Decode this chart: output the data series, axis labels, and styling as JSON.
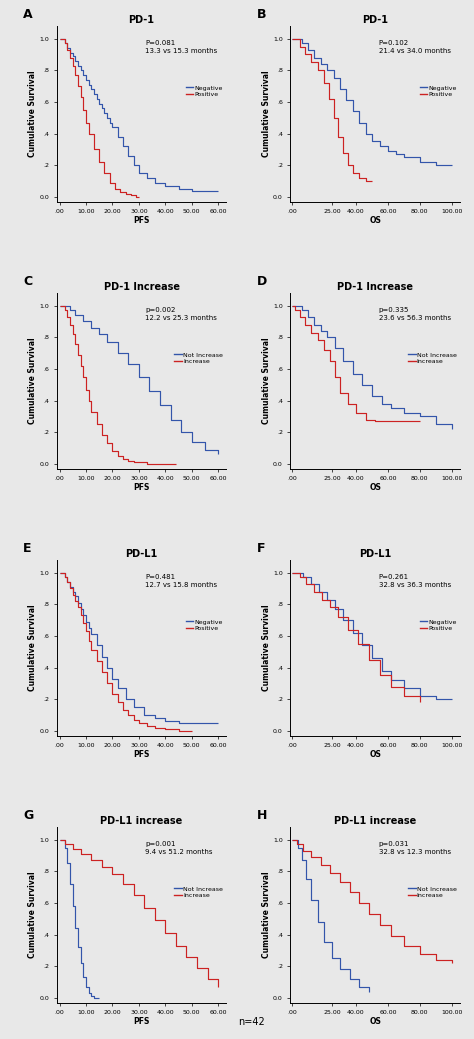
{
  "panels": [
    {
      "label": "A",
      "title": "PD-1",
      "xlabel": "PFS",
      "ylabel": "Cumulative Survival",
      "xlim": [
        -1,
        63
      ],
      "ylim": [
        -0.03,
        1.08
      ],
      "xtick_vals": [
        0,
        10,
        20,
        30,
        40,
        50,
        60
      ],
      "xtick_labs": [
        ".00",
        "10.00",
        "20.00",
        "30.00",
        "40.00",
        "50.00",
        "60.00"
      ],
      "ytick_vals": [
        0.0,
        0.2,
        0.4,
        0.6,
        0.8,
        1.0
      ],
      "ytick_labs": [
        "0.0",
        ".2",
        ".4",
        ".6",
        ".8",
        "1.0"
      ],
      "annotation": "P=0.081\n13.3 vs 15.3 months",
      "legend": [
        "Negative",
        "Positive"
      ],
      "blue_x": [
        0,
        1,
        2,
        3,
        4,
        5,
        6,
        7,
        8,
        9,
        10,
        11,
        12,
        13,
        14,
        15,
        16,
        17,
        18,
        19,
        20,
        22,
        24,
        26,
        28,
        30,
        33,
        36,
        40,
        45,
        50,
        55,
        60
      ],
      "blue_y": [
        1.0,
        1.0,
        0.97,
        0.94,
        0.91,
        0.89,
        0.86,
        0.83,
        0.8,
        0.77,
        0.74,
        0.71,
        0.68,
        0.65,
        0.62,
        0.59,
        0.56,
        0.53,
        0.5,
        0.47,
        0.44,
        0.38,
        0.32,
        0.26,
        0.2,
        0.15,
        0.12,
        0.09,
        0.07,
        0.05,
        0.04,
        0.04,
        0.04
      ],
      "red_x": [
        0,
        1,
        2,
        3,
        4,
        5,
        6,
        7,
        8,
        9,
        10,
        11,
        13,
        15,
        17,
        19,
        21,
        23,
        25,
        27,
        29,
        30
      ],
      "red_y": [
        1.0,
        1.0,
        0.97,
        0.93,
        0.88,
        0.83,
        0.77,
        0.7,
        0.63,
        0.55,
        0.47,
        0.4,
        0.3,
        0.22,
        0.15,
        0.09,
        0.05,
        0.03,
        0.02,
        0.01,
        0.0,
        0.0
      ]
    },
    {
      "label": "B",
      "title": "PD-1",
      "xlabel": "OS",
      "ylabel": "Cumulative Survival",
      "xlim": [
        -1,
        105
      ],
      "ylim": [
        -0.03,
        1.08
      ],
      "xtick_vals": [
        0,
        25,
        40,
        60,
        80,
        100
      ],
      "xtick_labs": [
        ".00",
        "25.00",
        "40.00",
        "60.00",
        "80.00",
        "100.00"
      ],
      "ytick_vals": [
        0.0,
        0.2,
        0.4,
        0.6,
        0.8,
        1.0
      ],
      "ytick_labs": [
        "0.0",
        ".2",
        ".4",
        ".6",
        ".8",
        "1.0"
      ],
      "annotation": "P=0.102\n21.4 vs 34.0 months",
      "legend": [
        "Negative",
        "Positive"
      ],
      "blue_x": [
        0,
        3,
        6,
        10,
        14,
        18,
        22,
        26,
        30,
        34,
        38,
        42,
        46,
        50,
        55,
        60,
        65,
        70,
        80,
        90,
        100
      ],
      "blue_y": [
        1.0,
        1.0,
        0.97,
        0.93,
        0.88,
        0.84,
        0.8,
        0.75,
        0.68,
        0.61,
        0.54,
        0.47,
        0.4,
        0.35,
        0.32,
        0.29,
        0.27,
        0.25,
        0.22,
        0.2,
        0.2
      ],
      "red_x": [
        0,
        2,
        5,
        8,
        12,
        16,
        20,
        23,
        26,
        29,
        32,
        35,
        38,
        42,
        46,
        50
      ],
      "red_y": [
        1.0,
        1.0,
        0.95,
        0.9,
        0.85,
        0.8,
        0.72,
        0.62,
        0.5,
        0.38,
        0.28,
        0.2,
        0.15,
        0.12,
        0.1,
        0.1
      ]
    },
    {
      "label": "C",
      "title": "PD-1 Increase",
      "xlabel": "PFS",
      "ylabel": "Cumulative Survival",
      "xlim": [
        -1,
        63
      ],
      "ylim": [
        -0.03,
        1.08
      ],
      "xtick_vals": [
        0,
        10,
        20,
        30,
        40,
        50,
        60
      ],
      "xtick_labs": [
        ".00",
        "10.00",
        "20.00",
        "30.00",
        "40.00",
        "50.00",
        "60.00"
      ],
      "ytick_vals": [
        0.0,
        0.2,
        0.4,
        0.6,
        0.8,
        1.0
      ],
      "ytick_labs": [
        "0.0",
        ".2",
        ".4",
        ".6",
        ".8",
        "1.0"
      ],
      "annotation": "p=0.002\n12.2 vs 25.3 months",
      "legend": [
        "Not Increase",
        "Increase"
      ],
      "blue_x": [
        0,
        2,
        4,
        6,
        9,
        12,
        15,
        18,
        22,
        26,
        30,
        34,
        38,
        42,
        46,
        50,
        55,
        60
      ],
      "blue_y": [
        1.0,
        1.0,
        0.97,
        0.94,
        0.9,
        0.86,
        0.82,
        0.77,
        0.7,
        0.63,
        0.55,
        0.46,
        0.37,
        0.28,
        0.2,
        0.14,
        0.09,
        0.06
      ],
      "red_x": [
        0,
        1,
        2,
        3,
        4,
        5,
        6,
        7,
        8,
        9,
        10,
        11,
        12,
        14,
        16,
        18,
        20,
        22,
        24,
        26,
        28,
        30,
        33,
        36,
        40,
        44
      ],
      "red_y": [
        1.0,
        1.0,
        0.97,
        0.93,
        0.88,
        0.82,
        0.76,
        0.69,
        0.62,
        0.55,
        0.47,
        0.4,
        0.33,
        0.25,
        0.18,
        0.13,
        0.08,
        0.05,
        0.03,
        0.02,
        0.01,
        0.01,
        0.0,
        0.0,
        0.0,
        0.0
      ]
    },
    {
      "label": "D",
      "title": "PD-1 Increase",
      "xlabel": "OS",
      "ylabel": "Cumulative Survival",
      "xlim": [
        -1,
        105
      ],
      "ylim": [
        -0.03,
        1.08
      ],
      "xtick_vals": [
        0,
        25,
        40,
        60,
        80,
        100
      ],
      "xtick_labs": [
        ".00",
        "25.00",
        "40.00",
        "60.00",
        "80.00",
        "100.00"
      ],
      "ytick_vals": [
        0.0,
        0.2,
        0.4,
        0.6,
        0.8,
        1.0
      ],
      "ytick_labs": [
        "0.0",
        ".2",
        ".4",
        ".6",
        ".8",
        "1.0"
      ],
      "annotation": "p=0.335\n23.6 vs 56.3 months",
      "legend": [
        "Not Increase",
        "Increase"
      ],
      "blue_x": [
        0,
        3,
        6,
        10,
        14,
        18,
        22,
        27,
        32,
        38,
        44,
        50,
        56,
        62,
        70,
        80,
        90,
        100
      ],
      "blue_y": [
        1.0,
        1.0,
        0.97,
        0.93,
        0.88,
        0.84,
        0.8,
        0.73,
        0.65,
        0.57,
        0.5,
        0.43,
        0.38,
        0.35,
        0.32,
        0.3,
        0.25,
        0.22
      ],
      "red_x": [
        0,
        2,
        5,
        8,
        12,
        16,
        20,
        24,
        27,
        30,
        35,
        40,
        46,
        52,
        60,
        70,
        80
      ],
      "red_y": [
        1.0,
        0.97,
        0.93,
        0.88,
        0.83,
        0.78,
        0.72,
        0.65,
        0.55,
        0.45,
        0.38,
        0.32,
        0.28,
        0.27,
        0.27,
        0.27,
        0.27
      ]
    },
    {
      "label": "E",
      "title": "PD-L1",
      "xlabel": "PFS",
      "ylabel": "Cumulative Survival",
      "xlim": [
        -1,
        63
      ],
      "ylim": [
        -0.03,
        1.08
      ],
      "xtick_vals": [
        0,
        10,
        20,
        30,
        40,
        50,
        60
      ],
      "xtick_labs": [
        ".00",
        "10.00",
        "20.00",
        "30.00",
        "40.00",
        "50.00",
        "60.00"
      ],
      "ytick_vals": [
        0.0,
        0.2,
        0.4,
        0.6,
        0.8,
        1.0
      ],
      "ytick_labs": [
        "0.0",
        ".2",
        ".4",
        ".6",
        ".8",
        "1.0"
      ],
      "annotation": "P=0.481\n12.7 vs 15.8 months",
      "legend": [
        "Negative",
        "Positive"
      ],
      "blue_x": [
        0,
        1,
        2,
        3,
        4,
        5,
        6,
        7,
        8,
        9,
        10,
        11,
        12,
        14,
        16,
        18,
        20,
        22,
        25,
        28,
        32,
        36,
        40,
        45,
        50,
        55,
        60
      ],
      "blue_y": [
        1.0,
        1.0,
        0.97,
        0.94,
        0.91,
        0.88,
        0.85,
        0.81,
        0.77,
        0.73,
        0.69,
        0.65,
        0.61,
        0.54,
        0.47,
        0.4,
        0.33,
        0.27,
        0.2,
        0.15,
        0.1,
        0.08,
        0.06,
        0.05,
        0.05,
        0.05,
        0.05
      ],
      "red_x": [
        0,
        1,
        2,
        3,
        4,
        5,
        6,
        7,
        8,
        9,
        10,
        11,
        12,
        14,
        16,
        18,
        20,
        22,
        24,
        26,
        28,
        30,
        33,
        36,
        40,
        45,
        50
      ],
      "red_y": [
        1.0,
        1.0,
        0.97,
        0.94,
        0.9,
        0.86,
        0.82,
        0.78,
        0.73,
        0.68,
        0.63,
        0.57,
        0.51,
        0.44,
        0.37,
        0.3,
        0.23,
        0.18,
        0.13,
        0.1,
        0.07,
        0.05,
        0.03,
        0.02,
        0.01,
        0.0,
        0.0
      ]
    },
    {
      "label": "F",
      "title": "PD-L1",
      "xlabel": "OS",
      "ylabel": "Cumulative Survival",
      "xlim": [
        -1,
        105
      ],
      "ylim": [
        -0.03,
        1.08
      ],
      "xtick_vals": [
        0,
        25,
        40,
        60,
        80,
        100
      ],
      "xtick_labs": [
        ".00",
        "25.00",
        "40.00",
        "60.00",
        "80.00",
        "100.00"
      ],
      "ytick_vals": [
        0.0,
        0.2,
        0.4,
        0.6,
        0.8,
        1.0
      ],
      "ytick_labs": [
        "0.0",
        ".2",
        ".4",
        ".6",
        ".8",
        "1.0"
      ],
      "annotation": "P=0.261\n32.8 vs 36.3 months",
      "legend": [
        "Negative",
        "Positive"
      ],
      "blue_x": [
        0,
        3,
        7,
        12,
        17,
        22,
        27,
        32,
        38,
        44,
        50,
        56,
        62,
        70,
        80,
        90,
        100
      ],
      "blue_y": [
        1.0,
        1.0,
        0.97,
        0.93,
        0.88,
        0.83,
        0.77,
        0.7,
        0.62,
        0.54,
        0.46,
        0.38,
        0.32,
        0.27,
        0.22,
        0.2,
        0.2
      ],
      "red_x": [
        0,
        2,
        5,
        9,
        14,
        19,
        24,
        29,
        35,
        41,
        48,
        55,
        62,
        70,
        80
      ],
      "red_y": [
        1.0,
        1.0,
        0.97,
        0.93,
        0.88,
        0.83,
        0.78,
        0.72,
        0.64,
        0.55,
        0.45,
        0.35,
        0.28,
        0.22,
        0.18
      ]
    },
    {
      "label": "G",
      "title": "PD-L1 increase",
      "xlabel": "PFS",
      "ylabel": "Cumulative Survival",
      "xlim": [
        -1,
        63
      ],
      "ylim": [
        -0.03,
        1.08
      ],
      "xtick_vals": [
        0,
        10,
        20,
        30,
        40,
        50,
        60
      ],
      "xtick_labs": [
        ".00",
        "10.00",
        "20.00",
        "30.00",
        "40.00",
        "50.00",
        "60.00"
      ],
      "ytick_vals": [
        0.0,
        0.2,
        0.4,
        0.6,
        0.8,
        1.0
      ],
      "ytick_labs": [
        "0.0",
        ".2",
        ".4",
        ".6",
        ".8",
        "1.0"
      ],
      "annotation": "p=0.001\n9.4 vs 51.2 months",
      "legend": [
        "Not Increase",
        "Increase"
      ],
      "blue_x": [
        0,
        1,
        2,
        3,
        4,
        5,
        6,
        7,
        8,
        9,
        10,
        11,
        12,
        13,
        14,
        15
      ],
      "blue_y": [
        1.0,
        1.0,
        0.95,
        0.85,
        0.72,
        0.58,
        0.44,
        0.32,
        0.22,
        0.13,
        0.07,
        0.03,
        0.01,
        0.0,
        0.0,
        0.0
      ],
      "red_x": [
        0,
        2,
        5,
        8,
        12,
        16,
        20,
        24,
        28,
        32,
        36,
        40,
        44,
        48,
        52,
        56,
        60
      ],
      "red_y": [
        1.0,
        0.97,
        0.94,
        0.91,
        0.87,
        0.83,
        0.78,
        0.72,
        0.65,
        0.57,
        0.49,
        0.41,
        0.33,
        0.26,
        0.19,
        0.12,
        0.07
      ]
    },
    {
      "label": "H",
      "title": "PD-L1 increase",
      "xlabel": "OS",
      "ylabel": "Cumulative Survival",
      "xlim": [
        -1,
        105
      ],
      "ylim": [
        -0.03,
        1.08
      ],
      "xtick_vals": [
        0,
        25,
        40,
        60,
        80,
        100
      ],
      "xtick_labs": [
        ".00",
        "25.00",
        "40.00",
        "60.00",
        "80.00",
        "100.00"
      ],
      "ytick_vals": [
        0.0,
        0.2,
        0.4,
        0.6,
        0.8,
        1.0
      ],
      "ytick_labs": [
        "0.0",
        ".2",
        ".4",
        ".6",
        ".8",
        "1.0"
      ],
      "annotation": "p=0.031\n32.8 vs 12.3 months",
      "legend": [
        "Not Increase",
        "Increase"
      ],
      "blue_x": [
        0,
        2,
        4,
        6,
        9,
        12,
        16,
        20,
        25,
        30,
        36,
        42,
        48
      ],
      "blue_y": [
        1.0,
        1.0,
        0.95,
        0.87,
        0.75,
        0.62,
        0.48,
        0.35,
        0.25,
        0.18,
        0.12,
        0.07,
        0.04
      ],
      "red_x": [
        0,
        3,
        7,
        12,
        18,
        24,
        30,
        36,
        42,
        48,
        55,
        62,
        70,
        80,
        90,
        100
      ],
      "red_y": [
        1.0,
        0.97,
        0.93,
        0.89,
        0.84,
        0.79,
        0.73,
        0.67,
        0.6,
        0.53,
        0.46,
        0.39,
        0.33,
        0.28,
        0.24,
        0.22
      ]
    }
  ],
  "blue_color": "#3355AA",
  "red_color": "#CC2222",
  "bg_color": "#E8E8E8",
  "plot_bg": "#E8E8E8",
  "spine_color": "#000000",
  "annotation_fontsize": 5.0,
  "title_fontsize": 7.0,
  "axis_label_fontsize": 5.5,
  "tick_fontsize": 4.5,
  "legend_fontsize": 4.5,
  "panel_label_fontsize": 9,
  "footer": "n=42"
}
